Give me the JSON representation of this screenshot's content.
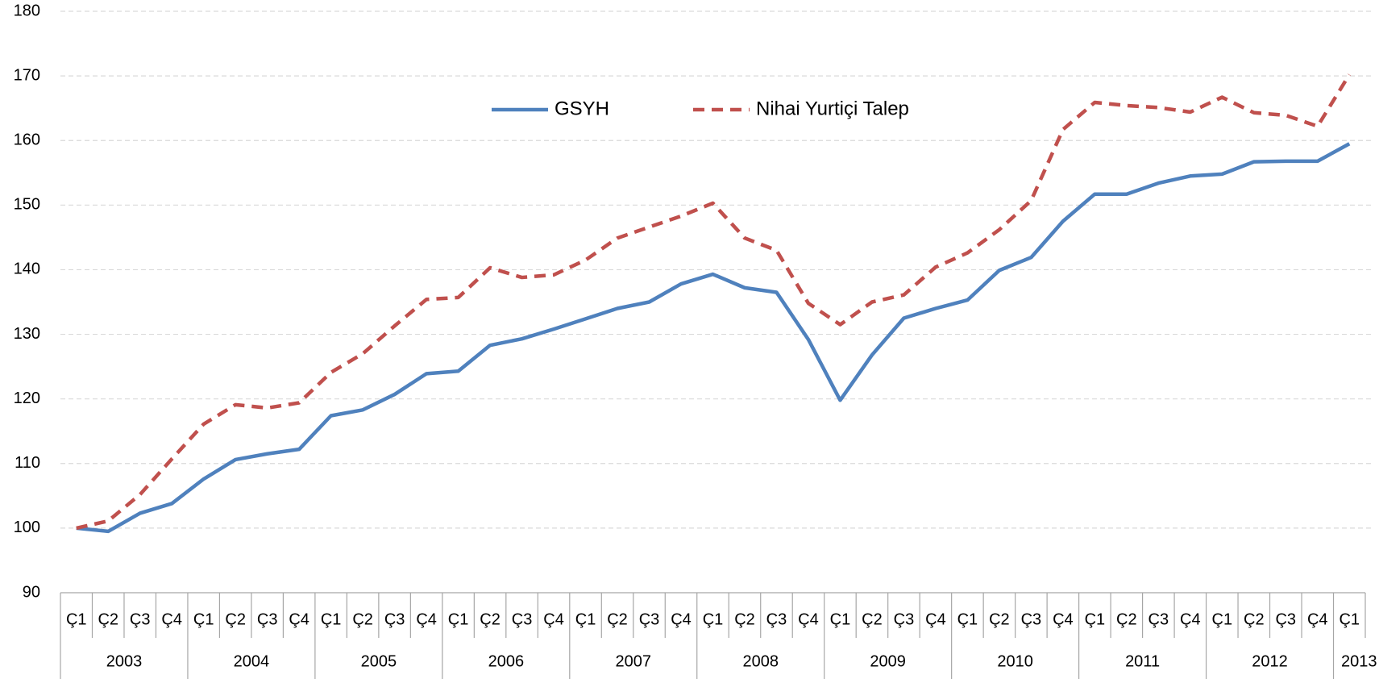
{
  "chart_data": {
    "type": "line",
    "categories": [
      "Ç1",
      "Ç2",
      "Ç3",
      "Ç4",
      "Ç1",
      "Ç2",
      "Ç3",
      "Ç4",
      "Ç1",
      "Ç2",
      "Ç3",
      "Ç4",
      "Ç1",
      "Ç2",
      "Ç3",
      "Ç4",
      "Ç1",
      "Ç2",
      "Ç3",
      "Ç4",
      "Ç1",
      "Ç2",
      "Ç3",
      "Ç4",
      "Ç1",
      "Ç2",
      "Ç3",
      "Ç4",
      "Ç1",
      "Ç2",
      "Ç3",
      "Ç4",
      "Ç1",
      "Ç2",
      "Ç3",
      "Ç4",
      "Ç1",
      "Ç2",
      "Ç3",
      "Ç4",
      "Ç1"
    ],
    "years": [
      "2003",
      "2004",
      "2005",
      "2006",
      "2007",
      "2008",
      "2009",
      "2010",
      "2011",
      "2012",
      "2013"
    ],
    "series": [
      {
        "name": "GSYH",
        "color": "#4f81bd",
        "dash": false,
        "values": [
          100,
          99.5,
          102.3,
          103.8,
          107.6,
          110.6,
          111.5,
          112.2,
          117.4,
          118.3,
          120.7,
          123.9,
          124.3,
          128.3,
          129.3,
          130.8,
          132.4,
          134.0,
          135.0,
          137.8,
          139.3,
          137.2,
          136.5,
          129.2,
          119.8,
          126.8,
          132.5,
          134.0,
          135.3,
          139.9,
          141.9,
          147.5,
          151.7,
          151.7,
          153.4,
          154.5,
          154.8,
          156.7,
          156.8,
          156.8,
          159.5
        ]
      },
      {
        "name": "Nihai Yurtiçi Talep",
        "color": "#c0504d",
        "dash": true,
        "values": [
          100,
          101.1,
          105.2,
          110.7,
          116.1,
          119.1,
          118.6,
          119.4,
          124.1,
          127.0,
          131.3,
          135.4,
          135.7,
          140.3,
          138.8,
          139.2,
          141.5,
          144.9,
          146.6,
          148.3,
          150.3,
          144.9,
          143.0,
          134.8,
          131.5,
          135.0,
          136.1,
          140.4,
          142.6,
          146.2,
          150.7,
          161.7,
          165.9,
          165.4,
          165.1,
          164.4,
          166.7,
          164.3,
          163.9,
          162.2,
          170.2
        ]
      }
    ],
    "ylim": [
      90,
      180
    ],
    "yticks": [
      90,
      100,
      110,
      120,
      130,
      140,
      150,
      160,
      170,
      180
    ],
    "grid": true,
    "legend": "top"
  }
}
